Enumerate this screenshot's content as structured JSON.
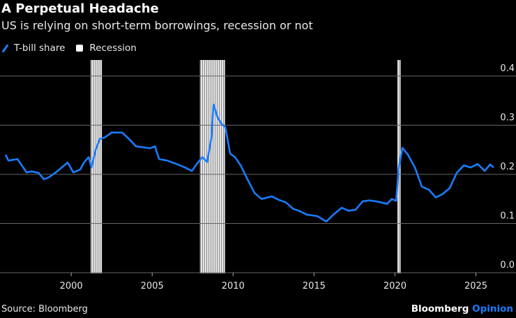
{
  "brand": {
    "name": "Bloomberg",
    "suffix": "Opinion"
  },
  "chart_data": {
    "type": "line",
    "title": "A Perpetual Headache",
    "subtitle": "US is relying on short-term borrowings, recession or not",
    "source": "Source: Bloomberg",
    "legend": [
      {
        "label": "T-bill share",
        "color": "#1a7cff"
      },
      {
        "label": "Recession",
        "color": "#ffffff"
      }
    ],
    "legend_placement": "top-left",
    "xlabel": "",
    "ylabel": "",
    "xlim": [
      1995.6,
      2026.4
    ],
    "ylim": [
      0,
      0.4
    ],
    "x_ticks": [
      2000,
      2005,
      2010,
      2015,
      2020,
      2025
    ],
    "x_tick_labels": [
      "2000",
      "2005",
      "2010",
      "2015",
      "2020",
      "2025"
    ],
    "y_ticks": [
      0,
      0.1,
      0.2,
      0.3,
      0.4
    ],
    "y_tick_labels": [
      "0.0",
      "0.1",
      "0.2",
      "0.3",
      "0.4"
    ],
    "y_axis_side": "right",
    "grid": true,
    "recessions": [
      [
        2001.2,
        2001.9
      ],
      [
        2007.95,
        2009.5
      ],
      [
        2020.15,
        2020.35
      ]
    ],
    "series": [
      {
        "name": "T-bill share",
        "x": [
          1995.95,
          1996.12,
          1996.68,
          1997.24,
          1997.55,
          1997.98,
          1998.32,
          1998.62,
          1999.05,
          1999.78,
          2000.13,
          2000.56,
          2000.78,
          2001.08,
          2001.25,
          2001.51,
          2001.77,
          2002.07,
          2002.5,
          2003.14,
          2003.57,
          2004.0,
          2004.44,
          2004.87,
          2005.17,
          2005.43,
          2005.94,
          2006.59,
          2007.02,
          2007.45,
          2007.75,
          2008.1,
          2008.4,
          2008.66,
          2008.79,
          2009.04,
          2009.3,
          2009.52,
          2009.82,
          2010.12,
          2010.47,
          2010.9,
          2011.33,
          2011.76,
          2012.4,
          2012.83,
          2013.26,
          2013.7,
          2014.13,
          2014.56,
          2015.2,
          2015.76,
          2016.19,
          2016.71,
          2017.14,
          2017.57,
          2018.0,
          2018.43,
          2018.86,
          2019.51,
          2019.81,
          2020.07,
          2020.24,
          2020.46,
          2020.8,
          2021.23,
          2021.66,
          2022.09,
          2022.52,
          2022.95,
          2023.38,
          2023.82,
          2024.25,
          2024.68,
          2025.11,
          2025.54,
          2025.88,
          2026.1
        ],
        "values": [
          0.24,
          0.228,
          0.231,
          0.204,
          0.206,
          0.203,
          0.19,
          0.194,
          0.204,
          0.224,
          0.204,
          0.21,
          0.224,
          0.235,
          0.214,
          0.25,
          0.272,
          0.275,
          0.285,
          0.285,
          0.272,
          0.257,
          0.255,
          0.253,
          0.257,
          0.231,
          0.228,
          0.22,
          0.214,
          0.207,
          0.221,
          0.235,
          0.225,
          0.275,
          0.342,
          0.316,
          0.302,
          0.296,
          0.242,
          0.235,
          0.218,
          0.189,
          0.162,
          0.15,
          0.155,
          0.148,
          0.143,
          0.13,
          0.125,
          0.118,
          0.115,
          0.104,
          0.118,
          0.132,
          0.126,
          0.128,
          0.145,
          0.147,
          0.145,
          0.14,
          0.15,
          0.146,
          0.214,
          0.254,
          0.24,
          0.214,
          0.175,
          0.169,
          0.153,
          0.16,
          0.172,
          0.203,
          0.218,
          0.214,
          0.221,
          0.207,
          0.22,
          0.214
        ]
      }
    ]
  }
}
